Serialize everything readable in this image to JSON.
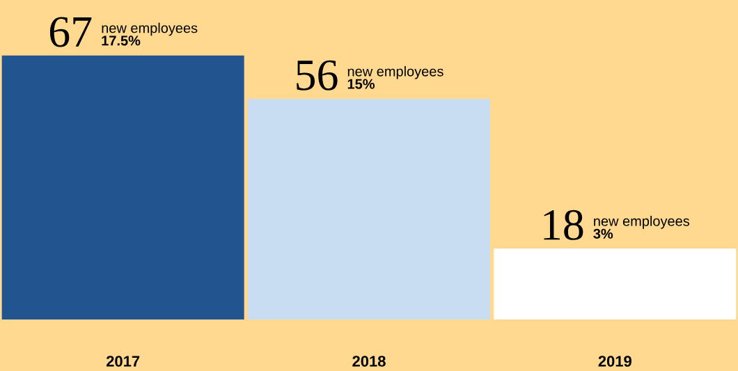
{
  "chart_data": {
    "type": "bar",
    "categories": [
      "2017",
      "2018",
      "2019"
    ],
    "values": [
      67,
      56,
      18
    ],
    "colors": [
      "#22558f",
      "#c8ddf2",
      "#ffffff"
    ],
    "data_labels": true,
    "annotations": [
      {
        "text": "new employees",
        "x": "2017",
        "y": 67
      },
      {
        "text": "**17.5%**",
        "x": "2017",
        "y": 67
      },
      {
        "text": "new employees",
        "x": "2018",
        "y": 56
      },
      {
        "text": "**15%**",
        "x": "2018",
        "y": 56
      },
      {
        "text": "new employees",
        "x": "2019",
        "y": 18
      },
      {
        "text": "**3%**",
        "x": "2019",
        "y": 18
      }
    ]
  }
}
